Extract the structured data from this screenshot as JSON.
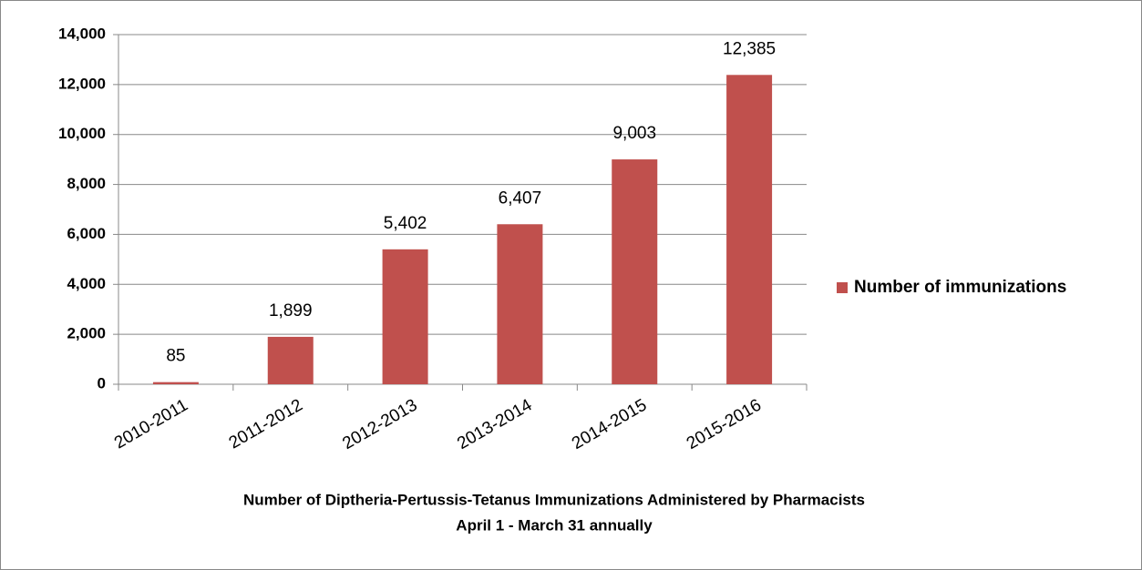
{
  "chart_data": {
    "type": "bar",
    "title": "Number of Diptheria-Pertussis-Tetanus Immunizations Administered by Pharmacists",
    "subtitle": "April 1 - March 31 annually",
    "categories": [
      "2010-2011",
      "2011-2012",
      "2012-2013",
      "2013-2014",
      "2014-2015",
      "2015-2016"
    ],
    "series": [
      {
        "name": "Number of immunizations",
        "color": "#c0504d",
        "values": [
          85,
          1899,
          5402,
          6407,
          9003,
          12385
        ],
        "value_labels": [
          "85",
          "1,899",
          "5,402",
          "6,407",
          "9,003",
          "12,385"
        ]
      }
    ],
    "ylim": [
      0,
      14000
    ],
    "yticks": [
      0,
      {
        "value": 2000,
        "label": "2,000"
      },
      {
        "value": 4000,
        "label": "4,000"
      },
      {
        "value": 6000,
        "label": "6,000"
      },
      {
        "value": 8000,
        "label": "8,000"
      },
      {
        "value": 10000,
        "label": "10,000"
      },
      {
        "value": 12000,
        "label": "12,000"
      },
      {
        "value": 14000,
        "label": "14,000"
      }
    ],
    "grid": true,
    "legend": "right"
  }
}
